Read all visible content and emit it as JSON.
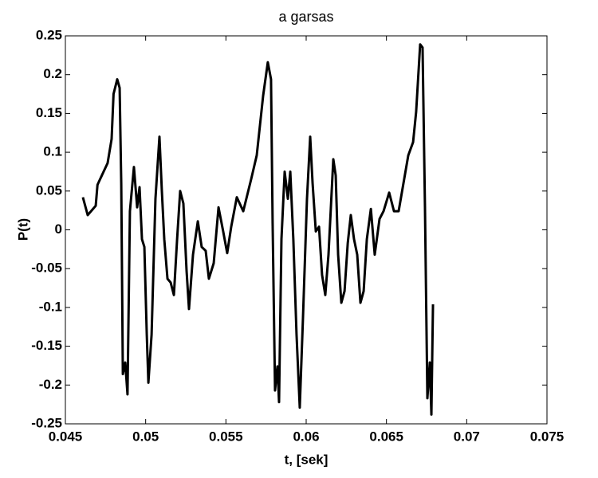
{
  "chart_data": {
    "type": "line",
    "title": "a   garsas",
    "xlabel": "t, [sek]",
    "ylabel": "P(t)",
    "color": "#000000",
    "xlim": [
      0.045,
      0.075
    ],
    "xticks": [
      0.045,
      0.05,
      0.055,
      0.06,
      0.065,
      0.07,
      0.075
    ],
    "ylim": [
      -0.25,
      0.25
    ],
    "yticks": [
      -0.25,
      -0.2,
      -0.15,
      -0.1,
      -0.05,
      0,
      0.05,
      0.1,
      0.15,
      0.2,
      0.25
    ],
    "x": [
      0.04609,
      0.04639,
      0.04689,
      0.047,
      0.04738,
      0.04763,
      0.04788,
      0.048,
      0.04823,
      0.04838,
      0.04848,
      0.04858,
      0.04873,
      0.04887,
      0.04902,
      0.04927,
      0.04947,
      0.04962,
      0.04977,
      0.04992,
      0.05007,
      0.05017,
      0.05037,
      0.05061,
      0.05086,
      0.05101,
      0.05116,
      0.05136,
      0.05156,
      0.05176,
      0.05196,
      0.05215,
      0.05235,
      0.05255,
      0.0527,
      0.05295,
      0.05325,
      0.05349,
      0.05374,
      0.05394,
      0.05424,
      0.05454,
      0.05483,
      0.05508,
      0.05533,
      0.05568,
      0.05608,
      0.05657,
      0.05692,
      0.05732,
      0.05761,
      0.05781,
      0.05791,
      0.05806,
      0.05821,
      0.05831,
      0.05846,
      0.05866,
      0.05886,
      0.05901,
      0.0592,
      0.0594,
      0.0596,
      0.0598,
      0.06005,
      0.06025,
      0.0604,
      0.0606,
      0.0608,
      0.06099,
      0.06119,
      0.06139,
      0.06169,
      0.06184,
      0.06199,
      0.06219,
      0.06239,
      0.06259,
      0.06278,
      0.06298,
      0.06318,
      0.06338,
      0.06358,
      0.06378,
      0.06403,
      0.06427,
      0.06457,
      0.06482,
      0.06517,
      0.06547,
      0.06576,
      0.06606,
      0.06636,
      0.06666,
      0.06685,
      0.0671,
      0.06725,
      0.0674,
      0.06755,
      0.0677,
      0.0678,
      0.0679
    ],
    "values": [
      0.042,
      0.019,
      0.031,
      0.058,
      0.075,
      0.086,
      0.117,
      0.175,
      0.194,
      0.183,
      0.06,
      -0.186,
      -0.171,
      -0.212,
      0.024,
      0.081,
      0.029,
      0.055,
      -0.012,
      -0.022,
      -0.135,
      -0.197,
      -0.135,
      0.04,
      0.12,
      0.05,
      -0.012,
      -0.063,
      -0.068,
      -0.084,
      -0.012,
      0.05,
      0.034,
      -0.053,
      -0.102,
      -0.032,
      0.011,
      -0.022,
      -0.027,
      -0.063,
      -0.043,
      0.029,
      -0.002,
      -0.03,
      0.004,
      0.042,
      0.024,
      0.065,
      0.096,
      0.173,
      0.216,
      0.194,
      0.009,
      -0.207,
      -0.176,
      -0.222,
      -0.012,
      0.075,
      0.04,
      0.075,
      -0.012,
      -0.135,
      -0.229,
      -0.114,
      0.04,
      0.12,
      0.06,
      -0.002,
      0.004,
      -0.058,
      -0.084,
      -0.032,
      0.091,
      0.07,
      -0.032,
      -0.094,
      -0.079,
      -0.017,
      0.019,
      -0.012,
      -0.032,
      -0.094,
      -0.079,
      -0.012,
      0.027,
      -0.032,
      0.014,
      0.024,
      0.048,
      0.024,
      0.024,
      0.06,
      0.096,
      0.113,
      0.152,
      0.239,
      0.235,
      0.029,
      -0.217,
      -0.171,
      -0.238,
      -0.096
    ]
  }
}
